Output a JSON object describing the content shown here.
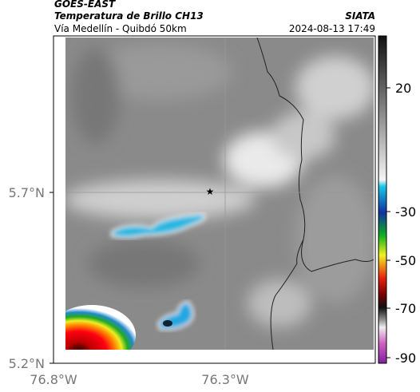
{
  "header": {
    "line1": "GOES-EAST",
    "title": "Temperatura de Brillo CH13",
    "subtitle": "Vía Medellín - Quibdó 50km",
    "source": "SIATA",
    "timestamp": "2024-08-13 17:49"
  },
  "map": {
    "lat_ticks": [
      "5.7°N",
      "5.2°N"
    ],
    "lon_ticks": [
      "76.8°W",
      "76.3°W"
    ]
  },
  "colorbar": {
    "ticks": [
      20,
      -30,
      -50,
      -70,
      -90
    ]
  }
}
